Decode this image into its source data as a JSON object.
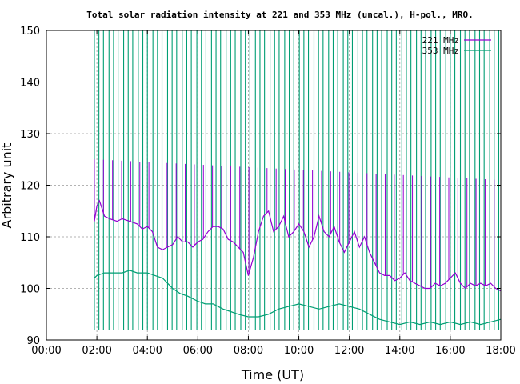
{
  "chart_data": {
    "type": "line",
    "title": "Total solar radiation intensity at 221 and 353 MHz (uncal.), H-pol., MRO.",
    "xlabel": "Time (UT)",
    "ylabel": "Arbitrary unit",
    "xlim": [
      0,
      18
    ],
    "ylim": [
      90,
      150
    ],
    "x_ticks": [
      "00:00",
      "02:00",
      "04:00",
      "06:00",
      "08:00",
      "10:00",
      "12:00",
      "14:00",
      "16:00",
      "18:00"
    ],
    "y_ticks": [
      "90",
      "100",
      "110",
      "120",
      "130",
      "140",
      "150"
    ],
    "grid": true,
    "legend_position": "top-right",
    "series": [
      {
        "name": "221 MHz",
        "color": "#9400d3",
        "x": [
          1.9,
          2.0,
          2.1,
          2.3,
          2.5,
          2.8,
          3.0,
          3.3,
          3.6,
          3.8,
          4.0,
          4.2,
          4.4,
          4.6,
          4.8,
          5.0,
          5.2,
          5.4,
          5.6,
          5.8,
          6.0,
          6.2,
          6.4,
          6.6,
          6.8,
          7.0,
          7.2,
          7.4,
          7.6,
          7.8,
          8.0,
          8.2,
          8.4,
          8.6,
          8.8,
          9.0,
          9.2,
          9.4,
          9.6,
          9.8,
          10.0,
          10.2,
          10.4,
          10.6,
          10.8,
          11.0,
          11.2,
          11.4,
          11.6,
          11.8,
          12.0,
          12.2,
          12.4,
          12.6,
          12.8,
          13.0,
          13.2,
          13.4,
          13.6,
          13.8,
          14.0,
          14.2,
          14.4,
          14.6,
          14.8,
          15.0,
          15.2,
          15.4,
          15.6,
          15.8,
          16.0,
          16.2,
          16.4,
          16.6,
          16.8,
          17.0,
          17.2,
          17.4,
          17.6,
          17.8,
          18.0
        ],
        "y": [
          113,
          116,
          117,
          114,
          113.5,
          113,
          113.5,
          113,
          112.5,
          111.5,
          112,
          111,
          108,
          107.5,
          108,
          108.5,
          110,
          109,
          109,
          108,
          109,
          109.5,
          111,
          112,
          112,
          111.5,
          109.5,
          109,
          108,
          107,
          102.5,
          106,
          111,
          114,
          115,
          111,
          112,
          114,
          110,
          111,
          112.5,
          111,
          108,
          110,
          114,
          111,
          110,
          112,
          109,
          107,
          109,
          111,
          108,
          110,
          107,
          105,
          103,
          102.5,
          102.5,
          101.5,
          102,
          103,
          101.5,
          101,
          100.5,
          100,
          100,
          101,
          100.5,
          101,
          102,
          103,
          101,
          100,
          101,
          100.5,
          101,
          100.5,
          101,
          100,
          99.5
        ]
      },
      {
        "name": "353 MHz",
        "color": "#009e73",
        "x": [
          1.9,
          2.0,
          2.3,
          2.6,
          3.0,
          3.3,
          3.6,
          4.0,
          4.3,
          4.6,
          4.8,
          5.0,
          5.3,
          5.6,
          6.0,
          6.3,
          6.6,
          7.0,
          7.3,
          7.6,
          8.0,
          8.4,
          8.8,
          9.2,
          9.6,
          10.0,
          10.4,
          10.8,
          11.2,
          11.6,
          12.0,
          12.4,
          12.8,
          13.2,
          13.6,
          14.0,
          14.4,
          14.8,
          15.2,
          15.6,
          16.0,
          16.4,
          16.8,
          17.2,
          17.6,
          18.0
        ],
        "y": [
          102,
          102.5,
          103,
          103,
          103,
          103.5,
          103,
          103,
          102.5,
          102,
          101,
          100,
          99,
          98.5,
          97.5,
          97,
          97,
          96,
          95.5,
          95,
          94.5,
          94.5,
          95,
          96,
          96.5,
          97,
          96.5,
          96,
          96.5,
          97,
          96.5,
          96,
          95,
          94,
          93.5,
          93,
          93.5,
          93,
          93.5,
          93,
          93.5,
          93,
          93.5,
          93,
          93.5,
          94
        ]
      }
    ]
  }
}
